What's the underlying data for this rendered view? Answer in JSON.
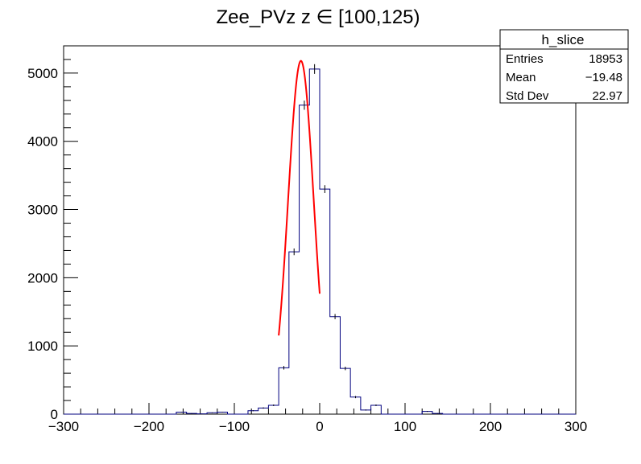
{
  "chart_data": {
    "type": "histogram",
    "title": "Zee_PVz z  ∈ [100,125)",
    "xlabel": "",
    "ylabel": "",
    "xlim": [
      -300,
      300
    ],
    "ylim": [
      0,
      5400
    ],
    "bin_width": 12,
    "x_ticks": [
      -300,
      -200,
      -100,
      0,
      100,
      200,
      300
    ],
    "x_tick_labels": [
      "−300",
      "−200",
      "−100",
      "0",
      "100",
      "200",
      "300"
    ],
    "y_ticks": [
      0,
      1000,
      2000,
      3000,
      4000,
      5000
    ],
    "y_tick_labels": [
      "0",
      "1000",
      "2000",
      "3000",
      "4000",
      "5000"
    ],
    "grid": false,
    "histogram": {
      "name": "h_slice",
      "color": "#00007f",
      "bin_edges": [
        -300,
        -288,
        -276,
        -264,
        -252,
        -240,
        -228,
        -216,
        -204,
        -192,
        -180,
        -168,
        -156,
        -144,
        -132,
        -120,
        -108,
        -96,
        -84,
        -72,
        -60,
        -48,
        -36,
        -24,
        -12,
        0,
        12,
        24,
        36,
        48,
        60,
        72,
        84,
        96,
        108,
        120,
        132,
        144,
        156,
        168,
        180,
        192,
        204,
        216,
        228,
        240,
        252,
        264,
        276,
        288,
        300
      ],
      "counts": [
        0,
        0,
        0,
        0,
        0,
        0,
        0,
        0,
        0,
        0,
        0,
        30,
        10,
        5,
        20,
        30,
        0,
        0,
        50,
        90,
        130,
        680,
        2380,
        4530,
        5060,
        3300,
        1430,
        670,
        250,
        60,
        130,
        0,
        0,
        0,
        0,
        40,
        10,
        0,
        0,
        0,
        0,
        0,
        0,
        0,
        0,
        0,
        0,
        0,
        0,
        0
      ]
    },
    "fit": {
      "type": "gaussian",
      "color": "#ff0000",
      "amplitude": 5180,
      "mean": -22,
      "sigma": 15,
      "x_range": [
        -48,
        0
      ]
    },
    "stats_box": {
      "title": "h_slice",
      "rows": [
        {
          "label": "Entries",
          "value": "18953"
        },
        {
          "label": "Mean",
          "value": "−19.48"
        },
        {
          "label": "Std Dev",
          "value": "22.97"
        }
      ]
    }
  }
}
